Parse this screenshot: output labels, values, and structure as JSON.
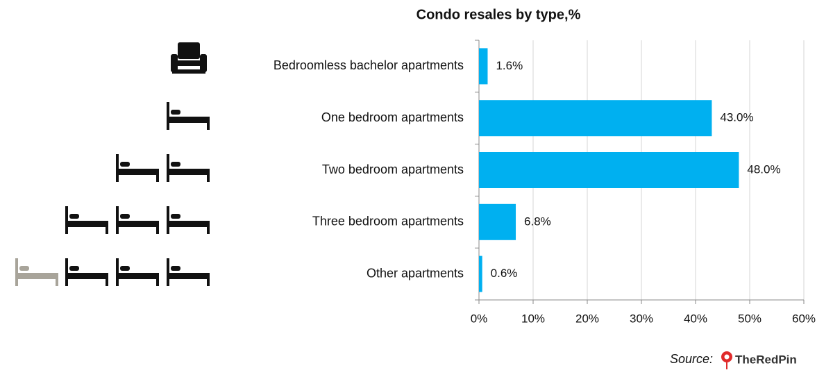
{
  "chart_data": {
    "type": "bar",
    "orientation": "horizontal",
    "title": "Condo resales by type,%",
    "categories": [
      "Bedroomless bachelor apartments",
      "One bedroom apartments",
      "Two bedroom apartments",
      "Three bedroom apartments",
      "Other apartments"
    ],
    "values": [
      1.6,
      43.0,
      48.0,
      6.8,
      0.6
    ],
    "value_labels": [
      "1.6%",
      "43.0%",
      "48.0%",
      "6.8%",
      "0.6%"
    ],
    "color": "#00b0f0",
    "xlim": [
      0,
      60
    ],
    "xticks": [
      {
        "value": 0,
        "label": "0%"
      },
      {
        "value": 10,
        "label": "10%"
      },
      {
        "value": 20,
        "label": "20%"
      },
      {
        "value": 30,
        "label": "30%"
      },
      {
        "value": 40,
        "label": "40%"
      },
      {
        "value": 50,
        "label": "50%"
      },
      {
        "value": 60,
        "label": "60%"
      }
    ],
    "grid": true,
    "source_label": "Source:",
    "logo_text": "TheRedPin"
  }
}
